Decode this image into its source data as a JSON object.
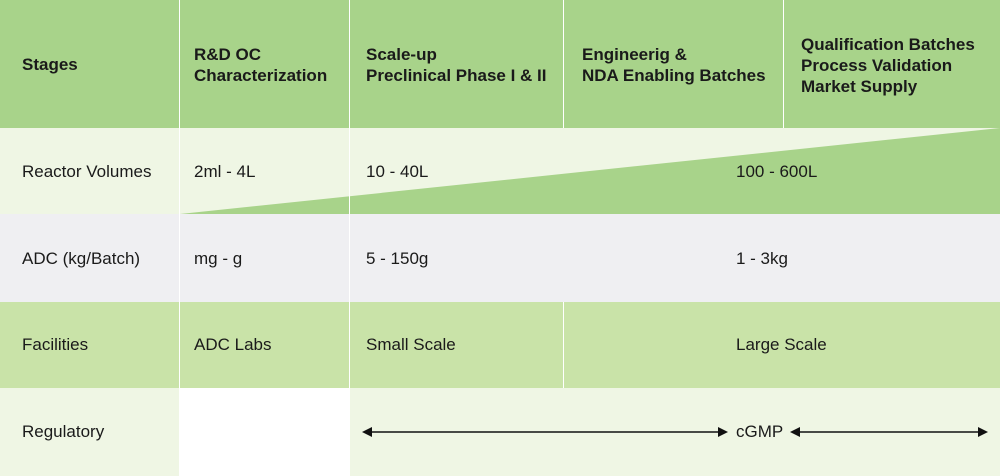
{
  "colors": {
    "header_bg": "#a8d38a",
    "row_light_green": "#eff6e4",
    "row_mid_green": "#c9e3a8",
    "row_gray": "#efeff2",
    "wedge_green": "#a8d38a",
    "white": "#ffffff"
  },
  "header": {
    "stages": "Stages",
    "col1": [
      "R&D OC",
      "Characterization"
    ],
    "col2": [
      "Scale-up",
      "Preclinical Phase I & II"
    ],
    "col3": [
      "Engineerig &",
      "NDA Enabling Batches"
    ],
    "col4": [
      "Qualification Batches",
      "Process Validation",
      "Market Supply"
    ]
  },
  "rows": {
    "reactor": {
      "label": "Reactor Volumes",
      "c1": "2ml - 4L",
      "c2": "10 - 40L",
      "c3": "100 - 600L"
    },
    "adc": {
      "label": "ADC (kg/Batch)",
      "c1": "mg - g",
      "c2": "5 - 150g",
      "c3": "1 - 3kg"
    },
    "facilities": {
      "label": "Facilities",
      "c1": "ADC Labs",
      "c2": "Small Scale",
      "c3": "Large Scale"
    },
    "regulatory": {
      "label": "Regulatory",
      "c3": "cGMP"
    }
  },
  "icons": {
    "arrow_left": "double-headed-arrow",
    "arrow_right": "double-headed-arrow"
  }
}
